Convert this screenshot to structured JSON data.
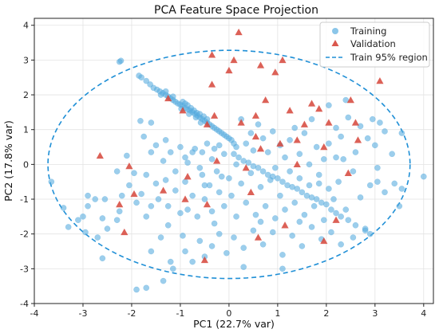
{
  "chart_data": {
    "type": "scatter",
    "title": "PCA Feature Space Projection",
    "xlabel": "PC1 (22.7% var)",
    "ylabel": "PC2 (17.8% var)",
    "xlim": [
      -4,
      4.2
    ],
    "ylim": [
      -4,
      4.2
    ],
    "xticks": [
      -4,
      -3,
      -2,
      -1,
      0,
      1,
      2,
      3,
      4
    ],
    "yticks": [
      -4,
      -3,
      -2,
      -1,
      0,
      1,
      2,
      3,
      4
    ],
    "grid": true,
    "legend_position": "top-right",
    "colors": {
      "training": "#5aaee0",
      "validation": "#d6453a",
      "region": "#1f8fd6"
    },
    "series": [
      {
        "name": "Training",
        "marker": "circle",
        "points": [
          [
            -2.25,
            2.95
          ],
          [
            -2.22,
            2.98
          ],
          [
            -1.85,
            2.55
          ],
          [
            -1.8,
            2.5
          ],
          [
            -1.7,
            2.4
          ],
          [
            -1.62,
            2.3
          ],
          [
            -1.55,
            2.2
          ],
          [
            -1.48,
            2.15
          ],
          [
            -1.42,
            2.1
          ],
          [
            -1.36,
            2.05
          ],
          [
            -1.3,
            2.0
          ],
          [
            -1.25,
            1.95
          ],
          [
            -1.2,
            1.9
          ],
          [
            -1.15,
            1.85
          ],
          [
            -1.1,
            1.8
          ],
          [
            -1.05,
            1.75
          ],
          [
            -1.0,
            1.72
          ],
          [
            -0.95,
            1.68
          ],
          [
            -0.9,
            1.62
          ],
          [
            -0.85,
            1.58
          ],
          [
            -0.8,
            1.55
          ],
          [
            -0.75,
            1.5
          ],
          [
            -0.7,
            1.45
          ],
          [
            -0.65,
            1.4
          ],
          [
            -0.6,
            1.35
          ],
          [
            -0.55,
            1.3
          ],
          [
            -0.5,
            1.25
          ],
          [
            -0.45,
            1.2
          ],
          [
            -0.4,
            1.15
          ],
          [
            -0.35,
            1.1
          ],
          [
            -0.3,
            1.05
          ],
          [
            -0.25,
            1.0
          ],
          [
            -0.2,
            0.95
          ],
          [
            -0.15,
            0.9
          ],
          [
            -0.1,
            0.85
          ],
          [
            -0.05,
            0.8
          ],
          [
            0.0,
            0.75
          ],
          [
            0.05,
            0.7
          ],
          [
            0.1,
            0.6
          ],
          [
            0.15,
            0.5
          ],
          [
            -0.95,
            1.8
          ],
          [
            -0.9,
            1.75
          ],
          [
            -0.85,
            1.7
          ],
          [
            -0.78,
            1.62
          ],
          [
            -0.72,
            1.55
          ],
          [
            -0.66,
            1.48
          ],
          [
            -0.6,
            1.45
          ],
          [
            -0.52,
            1.38
          ],
          [
            -0.45,
            1.3
          ],
          [
            -1.3,
            2.1
          ],
          [
            -1.4,
            2.0
          ],
          [
            -1.15,
            1.95
          ],
          [
            -0.98,
            1.6
          ],
          [
            -0.82,
            1.45
          ],
          [
            -0.68,
            1.35
          ],
          [
            -0.58,
            1.2
          ],
          [
            -1.82,
            1.25
          ],
          [
            -1.6,
            1.2
          ],
          [
            -1.75,
            0.8
          ],
          [
            -1.6,
            0.35
          ],
          [
            -1.3,
            0.7
          ],
          [
            -1.2,
            0.35
          ],
          [
            -0.9,
            0.2
          ],
          [
            -0.75,
            0.35
          ],
          [
            -0.55,
            0.35
          ],
          [
            -0.3,
            0.45
          ],
          [
            0.1,
            0.3
          ],
          [
            0.2,
            0.2
          ],
          [
            0.3,
            0.1
          ],
          [
            0.4,
            0.05
          ],
          [
            0.5,
            -0.05
          ],
          [
            0.6,
            -0.1
          ],
          [
            0.7,
            -0.2
          ],
          [
            0.8,
            -0.3
          ],
          [
            0.9,
            -0.35
          ],
          [
            1.0,
            -0.4
          ],
          [
            1.1,
            -0.5
          ],
          [
            1.2,
            -0.6
          ],
          [
            1.3,
            -0.65
          ],
          [
            1.4,
            -0.7
          ],
          [
            1.5,
            -0.8
          ],
          [
            1.6,
            -0.9
          ],
          [
            1.7,
            -0.95
          ],
          [
            1.8,
            -1.0
          ],
          [
            1.9,
            -1.1
          ],
          [
            2.0,
            -1.15
          ],
          [
            2.1,
            -1.3
          ],
          [
            2.2,
            -1.4
          ],
          [
            2.3,
            -1.5
          ],
          [
            2.45,
            -1.6
          ],
          [
            2.6,
            -1.75
          ],
          [
            2.8,
            -1.9
          ],
          [
            2.9,
            -2.0
          ],
          [
            -3.65,
            -0.5
          ],
          [
            -3.4,
            -1.25
          ],
          [
            -3.3,
            -1.8
          ],
          [
            -3.1,
            -1.6
          ],
          [
            -2.95,
            -1.95
          ],
          [
            -2.9,
            -0.9
          ],
          [
            -2.75,
            -1.0
          ],
          [
            -2.6,
            -1.55
          ],
          [
            -2.5,
            -1.85
          ],
          [
            -2.3,
            -1.6
          ],
          [
            -2.25,
            -1.35
          ],
          [
            -2.2,
            -0.9
          ],
          [
            -2.05,
            -0.6
          ],
          [
            -1.9,
            -1.1
          ],
          [
            -1.8,
            -0.85
          ],
          [
            -1.7,
            -1.5
          ],
          [
            -1.6,
            -1.2
          ],
          [
            -1.5,
            -0.55
          ],
          [
            -1.45,
            -1.0
          ],
          [
            -1.3,
            -0.45
          ],
          [
            -1.25,
            -1.2
          ],
          [
            -1.1,
            -0.75
          ],
          [
            -1.0,
            -1.4
          ],
          [
            -0.9,
            -0.5
          ],
          [
            -0.85,
            -1.3
          ],
          [
            -0.75,
            -0.9
          ],
          [
            -0.65,
            -1.5
          ],
          [
            -0.55,
            -0.3
          ],
          [
            -0.5,
            -1.0
          ],
          [
            -0.4,
            -0.6
          ],
          [
            -0.35,
            -1.35
          ],
          [
            -0.25,
            -0.2
          ],
          [
            -0.2,
            -0.8
          ],
          [
            -0.1,
            -1.2
          ],
          [
            0.0,
            -0.4
          ],
          [
            0.05,
            -0.9
          ],
          [
            0.15,
            -1.5
          ],
          [
            0.25,
            -0.55
          ],
          [
            0.35,
            -1.1
          ],
          [
            0.45,
            -0.25
          ],
          [
            0.55,
            -1.45
          ],
          [
            0.65,
            -0.65
          ],
          [
            0.75,
            -1.2
          ],
          [
            0.85,
            -0.45
          ],
          [
            0.95,
            -1.55
          ],
          [
            1.05,
            -0.9
          ],
          [
            1.15,
            -1.3
          ],
          [
            1.25,
            -0.2
          ],
          [
            1.35,
            -1.1
          ],
          [
            1.45,
            -0.4
          ],
          [
            1.55,
            -1.45
          ],
          [
            1.65,
            -0.6
          ],
          [
            1.75,
            -1.2
          ],
          [
            1.85,
            -0.3
          ],
          [
            1.95,
            -1.6
          ],
          [
            2.05,
            -0.7
          ],
          [
            2.15,
            -1.0
          ],
          [
            2.25,
            -0.5
          ],
          [
            2.4,
            -1.3
          ],
          [
            2.55,
            -0.2
          ],
          [
            2.7,
            -0.95
          ],
          [
            2.9,
            -0.6
          ],
          [
            3.05,
            -0.1
          ],
          [
            3.2,
            -0.8
          ],
          [
            3.4,
            -0.55
          ],
          [
            3.55,
            -0.7
          ],
          [
            3.55,
            0.9
          ],
          [
            3.35,
            0.3
          ],
          [
            3.2,
            0.95
          ],
          [
            3.0,
            0.55
          ],
          [
            2.85,
            0.75
          ],
          [
            2.7,
            1.1
          ],
          [
            2.6,
            0.35
          ],
          [
            2.45,
            1.35
          ],
          [
            2.3,
            0.8
          ],
          [
            2.2,
            1.05
          ],
          [
            2.05,
            0.6
          ],
          [
            1.95,
            0.15
          ],
          [
            1.8,
            0.5
          ],
          [
            1.7,
            1.3
          ],
          [
            1.55,
            0.9
          ],
          [
            1.45,
            0.3
          ],
          [
            1.35,
            1.05
          ],
          [
            1.25,
            0.7
          ],
          [
            1.15,
            0.2
          ],
          [
            1.05,
            0.55
          ],
          [
            0.9,
            0.95
          ],
          [
            0.8,
            0.35
          ],
          [
            0.7,
            0.75
          ],
          [
            0.6,
            1.15
          ],
          [
            0.5,
            0.4
          ],
          [
            0.45,
            0.9
          ],
          [
            0.35,
            0.6
          ],
          [
            0.25,
            1.3
          ],
          [
            -0.1,
            0.3
          ],
          [
            -0.2,
            0.55
          ],
          [
            -0.35,
            0.15
          ],
          [
            -0.45,
            0.6
          ],
          [
            -0.6,
            -0.1
          ],
          [
            -0.7,
            0.45
          ],
          [
            -0.85,
            0.05
          ],
          [
            -1.0,
            0.5
          ],
          [
            -1.1,
            -0.2
          ],
          [
            -1.35,
            0.1
          ],
          [
            -1.5,
            0.55
          ],
          [
            -1.7,
            -0.3
          ],
          [
            -1.95,
            -0.25
          ],
          [
            -2.1,
            0.25
          ],
          [
            -1.9,
            -3.6
          ],
          [
            -1.7,
            -3.55
          ],
          [
            -1.35,
            -3.35
          ],
          [
            -1.2,
            -2.8
          ],
          [
            -0.9,
            -2.5
          ],
          [
            -0.75,
            -2.8
          ],
          [
            -0.6,
            -2.2
          ],
          [
            -0.5,
            -2.65
          ],
          [
            -0.35,
            -2.35
          ],
          [
            -0.2,
            -2.0
          ],
          [
            -0.05,
            -2.55
          ],
          [
            0.1,
            -2.1
          ],
          [
            0.3,
            -2.4
          ],
          [
            0.5,
            -1.9
          ],
          [
            0.7,
            -2.3
          ],
          [
            0.9,
            -1.95
          ],
          [
            1.1,
            -2.6
          ],
          [
            1.3,
            -2.05
          ],
          [
            1.5,
            -2.35
          ],
          [
            1.7,
            -1.8
          ],
          [
            1.9,
            -2.15
          ],
          [
            2.1,
            -1.95
          ],
          [
            2.3,
            -2.3
          ],
          [
            2.55,
            -2.1
          ],
          [
            2.8,
            -1.85
          ],
          [
            -1.4,
            -2.1
          ],
          [
            -1.6,
            -2.5
          ],
          [
            -2.6,
            -2.7
          ],
          [
            -2.9,
            -1.2
          ],
          [
            -2.7,
            -2.1
          ],
          [
            -1.15,
            -3.0
          ],
          [
            1.1,
            -3.0
          ],
          [
            0.3,
            -2.95
          ],
          [
            3.5,
            -1.2
          ],
          [
            4.0,
            -0.35
          ],
          [
            3.05,
            -0.5
          ],
          [
            2.2,
            0.2
          ],
          [
            1.65,
            0.0
          ],
          [
            0.95,
            -0.1
          ],
          [
            -0.15,
            -0.35
          ],
          [
            -2.3,
            -0.2
          ],
          [
            -2.55,
            -1.0
          ],
          [
            -3.0,
            -1.5
          ],
          [
            -1.25,
            -1.75
          ],
          [
            -0.3,
            -1.7
          ],
          [
            0.65,
            -1.65
          ],
          [
            1.45,
            -1.65
          ],
          [
            -0.95,
            -2.05
          ],
          [
            2.05,
            1.7
          ],
          [
            2.4,
            1.85
          ],
          [
            2.95,
            1.3
          ],
          [
            3.1,
            1.2
          ],
          [
            2.35,
            0.15
          ],
          [
            1.85,
            -0.55
          ],
          [
            0.15,
            0.0
          ],
          [
            -0.5,
            -0.6
          ]
        ]
      },
      {
        "name": "Validation",
        "marker": "triangle",
        "points": [
          [
            0.2,
            3.8
          ],
          [
            -0.35,
            3.15
          ],
          [
            0.1,
            3.0
          ],
          [
            0.65,
            2.85
          ],
          [
            0.95,
            2.65
          ],
          [
            1.1,
            3.0
          ],
          [
            0.0,
            2.7
          ],
          [
            -0.35,
            2.3
          ],
          [
            -1.25,
            1.9
          ],
          [
            -0.95,
            1.55
          ],
          [
            -0.45,
            1.15
          ],
          [
            -0.3,
            1.4
          ],
          [
            0.25,
            1.2
          ],
          [
            0.55,
            1.4
          ],
          [
            0.75,
            1.85
          ],
          [
            1.25,
            1.55
          ],
          [
            1.55,
            1.15
          ],
          [
            1.7,
            1.75
          ],
          [
            1.85,
            1.6
          ],
          [
            2.05,
            1.2
          ],
          [
            2.5,
            1.85
          ],
          [
            2.6,
            1.2
          ],
          [
            2.65,
            0.7
          ],
          [
            3.1,
            2.4
          ],
          [
            -2.65,
            0.25
          ],
          [
            -2.05,
            -0.05
          ],
          [
            -1.95,
            -0.85
          ],
          [
            -2.25,
            -1.15
          ],
          [
            -1.35,
            -0.75
          ],
          [
            -0.85,
            -0.35
          ],
          [
            -0.9,
            -1.0
          ],
          [
            -0.45,
            -1.15
          ],
          [
            0.45,
            -0.8
          ],
          [
            1.05,
            0.6
          ],
          [
            1.4,
            0.0
          ],
          [
            1.95,
            0.5
          ],
          [
            2.45,
            -0.25
          ],
          [
            2.2,
            -1.6
          ],
          [
            1.15,
            -1.75
          ],
          [
            0.6,
            -2.1
          ],
          [
            -0.5,
            -2.75
          ],
          [
            -2.15,
            -1.95
          ],
          [
            1.95,
            -2.2
          ],
          [
            0.35,
            -0.1
          ],
          [
            0.55,
            0.8
          ],
          [
            0.65,
            0.45
          ],
          [
            -0.25,
            0.1
          ],
          [
            1.4,
            0.7
          ]
        ]
      }
    ],
    "region": {
      "name": "Train 95% region",
      "type": "ellipse",
      "cx": 0.0,
      "cy": 0.0,
      "rx": 3.72,
      "ry": 3.28
    }
  }
}
